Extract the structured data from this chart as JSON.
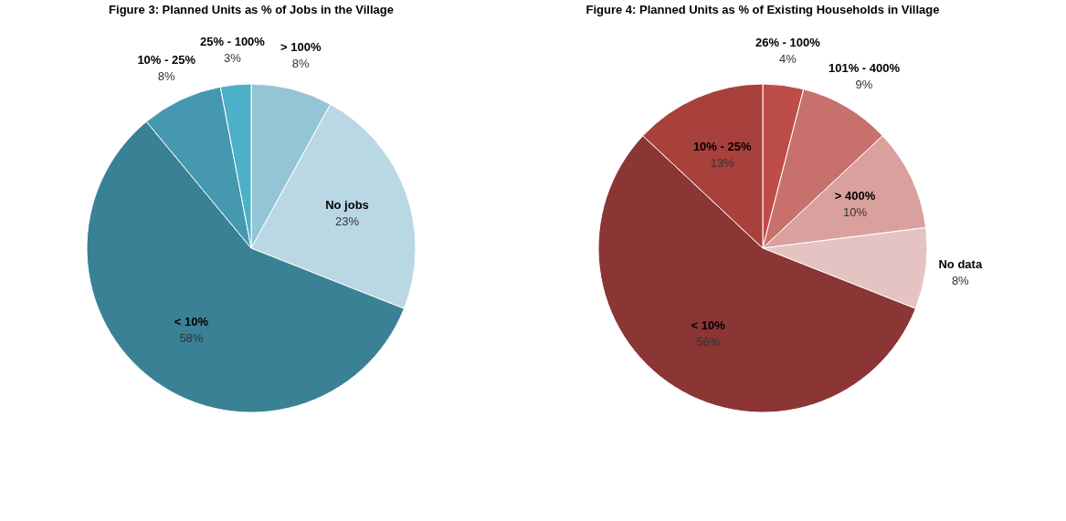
{
  "chart_data": [
    {
      "type": "pie",
      "title": "Figure 3: Planned Units as % of Jobs in the Village",
      "categories": [
        "> 100%",
        "No jobs",
        "< 10%",
        "10% - 25%",
        "25% - 100%"
      ],
      "values": [
        8,
        23,
        58,
        8,
        3
      ],
      "colors": [
        "#93c5d7",
        "#b9d8e4",
        "#3a8196",
        "#4598b0",
        "#4bb0c8"
      ],
      "value_labels": [
        "8%",
        "23%",
        "58%",
        "8%",
        "3%"
      ]
    },
    {
      "type": "pie",
      "title": "Figure 4: Planned Units as % of Existing Households in Village",
      "categories": [
        "26% - 100%",
        "101% - 400%",
        "> 400%",
        "No data",
        "< 10%",
        "10% - 25%"
      ],
      "values": [
        4,
        9,
        10,
        8,
        56,
        13
      ],
      "colors": [
        "#bd4e47",
        "#c8706b",
        "#d9a09d",
        "#e6c3c3",
        "#8b3535",
        "#a8403c"
      ],
      "value_labels": [
        "4%",
        "9%",
        "10%",
        "8%",
        "56%",
        "13%"
      ]
    }
  ]
}
